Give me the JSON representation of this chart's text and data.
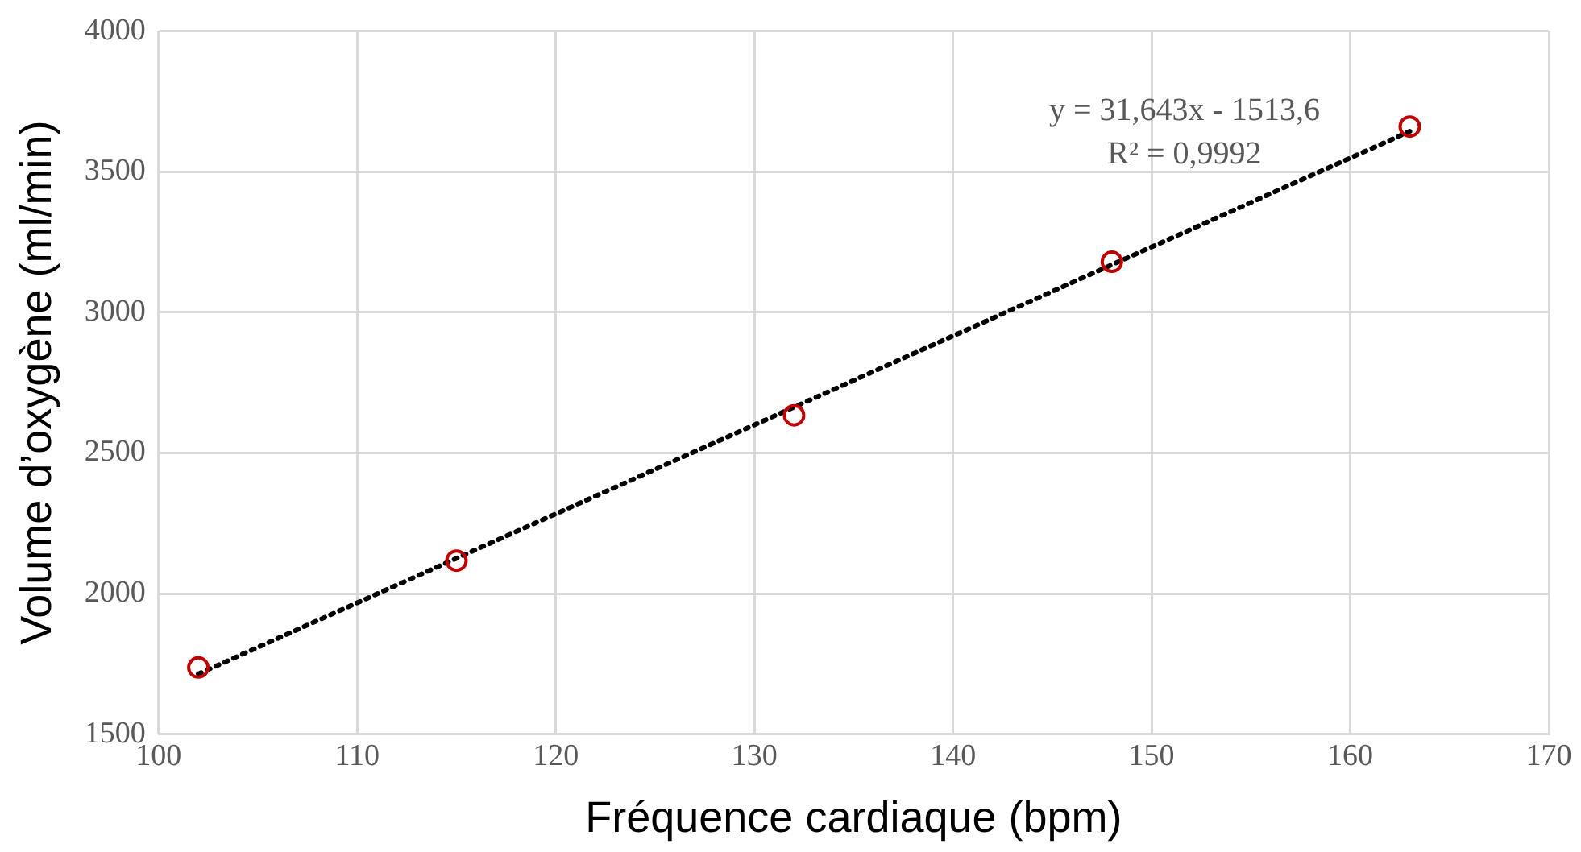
{
  "chart_data": {
    "type": "scatter",
    "xlabel": "Fréquence cardiaque (bpm)",
    "ylabel": "Volume d’oxygène (ml/min)",
    "x": [
      102,
      115,
      132,
      148,
      163
    ],
    "series": [
      {
        "color": "#c00000",
        "marker": "circle",
        "values": [
          1737,
          2117,
          2634,
          3180,
          3661
        ]
      },
      {
        "type": "line",
        "color": "#000000",
        "line_style": "dotted",
        "marker": "none",
        "x": [
          102,
          163
        ],
        "values": [
          1714,
          3644
        ]
      }
    ],
    "xlim": [
      100,
      170
    ],
    "xticks": [
      100,
      110,
      120,
      130,
      140,
      150,
      160,
      170
    ],
    "ylim": [
      1500,
      4000
    ],
    "yticks": [
      1500,
      2000,
      2500,
      3000,
      3500,
      4000
    ],
    "grid": true,
    "legend": false,
    "annotations": [
      "y = 31,643x - 1513,6",
      "R² = 0,9992"
    ]
  }
}
